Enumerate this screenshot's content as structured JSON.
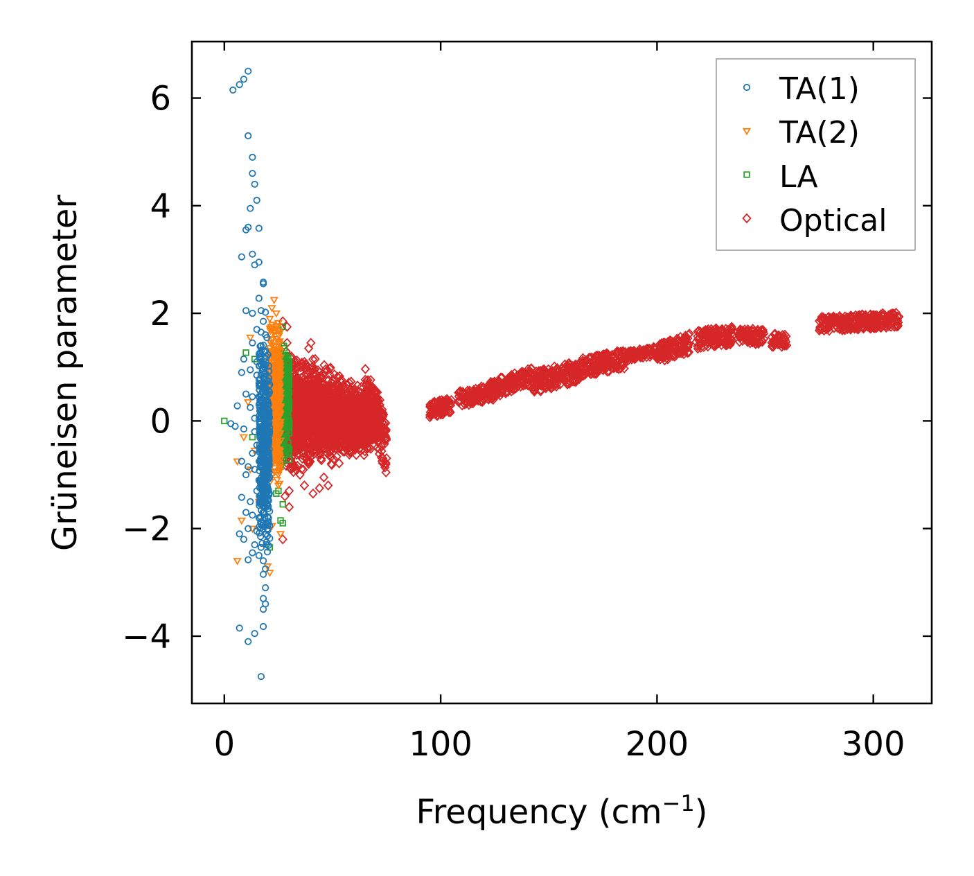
{
  "chart_data": {
    "type": "scatter",
    "title": "",
    "xlabel": "Frequency (cm",
    "xlabel_sup": "−1",
    "xlabel_close": ")",
    "ylabel": "Grüneisen parameter",
    "xlim": [
      -15,
      327
    ],
    "ylim": [
      -5.25,
      7.05
    ],
    "xticks": [
      0,
      100,
      200,
      300
    ],
    "xtick_labels": [
      "0",
      "100",
      "200",
      "300"
    ],
    "yticks": [
      -4,
      -2,
      0,
      2,
      4,
      6
    ],
    "ytick_labels": [
      "−4",
      "−2",
      "0",
      "2",
      "4",
      "6"
    ],
    "grid": false,
    "legend_position": "top-right",
    "series": [
      {
        "name": "TA(1)",
        "marker": "circle",
        "color": "#1f77b4",
        "points": [
          [
            4,
            6.15
          ],
          [
            7,
            6.25
          ],
          [
            9,
            6.35
          ],
          [
            11,
            6.5
          ],
          [
            11,
            5.3
          ],
          [
            13,
            4.9
          ],
          [
            13,
            4.6
          ],
          [
            14,
            4.4
          ],
          [
            15,
            4.1
          ],
          [
            12,
            3.95
          ],
          [
            10,
            3.55
          ],
          [
            11,
            3.6
          ],
          [
            16,
            3.58
          ],
          [
            8,
            3.05
          ],
          [
            13,
            3.1
          ],
          [
            14,
            2.9
          ],
          [
            16,
            2.95
          ],
          [
            18,
            2.58
          ],
          [
            18,
            2.55
          ],
          [
            16,
            2.28
          ],
          [
            10,
            2.05
          ],
          [
            13,
            2.0
          ],
          [
            17,
            2.05
          ],
          [
            19,
            2.02
          ],
          [
            18,
            1.85
          ],
          [
            15,
            1.7
          ],
          [
            17,
            1.65
          ],
          [
            19,
            1.6
          ],
          [
            13,
            1.45
          ],
          [
            17,
            1.4
          ],
          [
            19,
            1.3
          ],
          [
            9,
            1.15
          ],
          [
            15,
            1.1
          ],
          [
            17,
            1.05
          ],
          [
            8,
            0.9
          ],
          [
            12,
            0.95
          ],
          [
            15,
            0.85
          ],
          [
            18,
            0.8
          ],
          [
            16,
            0.7
          ],
          [
            10,
            0.5
          ],
          [
            13,
            0.45
          ],
          [
            17,
            0.4
          ],
          [
            19,
            0.45
          ],
          [
            6,
            0.28
          ],
          [
            12,
            0.25
          ],
          [
            16,
            0.3
          ],
          [
            18,
            0.15
          ],
          [
            14,
            0.05
          ],
          [
            3,
            -0.05
          ],
          [
            5,
            -0.1
          ],
          [
            9,
            -0.15
          ],
          [
            14,
            -0.2
          ],
          [
            17,
            -0.1
          ],
          [
            19,
            -0.25
          ],
          [
            15,
            -0.45
          ],
          [
            18,
            -0.5
          ],
          [
            13,
            -0.6
          ],
          [
            17,
            -0.7
          ],
          [
            8,
            -0.75
          ],
          [
            11,
            -0.85
          ],
          [
            14,
            -0.9
          ],
          [
            18,
            -0.95
          ],
          [
            10,
            -1.0
          ],
          [
            16,
            -1.1
          ],
          [
            19,
            -1.2
          ],
          [
            15,
            -1.3
          ],
          [
            8,
            -1.42
          ],
          [
            12,
            -1.5
          ],
          [
            17,
            -1.55
          ],
          [
            19,
            -1.6
          ],
          [
            10,
            -1.7
          ],
          [
            13,
            -1.75
          ],
          [
            16,
            -1.8
          ],
          [
            18,
            -1.9
          ],
          [
            11,
            -2.0
          ],
          [
            15,
            -2.05
          ],
          [
            19,
            -2.1
          ],
          [
            7,
            -2.1
          ],
          [
            9,
            -2.2
          ],
          [
            14,
            -2.3
          ],
          [
            17,
            -2.35
          ],
          [
            13,
            -2.45
          ],
          [
            16,
            -2.5
          ],
          [
            11,
            -2.58
          ],
          [
            18,
            -2.6
          ],
          [
            19,
            -2.75
          ],
          [
            18,
            -2.85
          ],
          [
            19,
            -3.1
          ],
          [
            18,
            -3.3
          ],
          [
            19,
            -3.4
          ],
          [
            18,
            -3.5
          ],
          [
            7,
            -3.85
          ],
          [
            14,
            -3.95
          ],
          [
            18,
            -3.82
          ],
          [
            11,
            -4.1
          ],
          [
            17,
            -4.75
          ]
        ],
        "cluster": {
          "xmin": 16,
          "xmax": 21,
          "ymin": -2.5,
          "ymax": 1.7,
          "count": 450
        }
      },
      {
        "name": "TA(2)",
        "marker": "triangle-down",
        "color": "#ff7f0e",
        "points": [
          [
            23,
            2.25
          ],
          [
            22,
            2.1
          ],
          [
            24,
            2.0
          ],
          [
            21,
            1.9
          ],
          [
            12,
            1.55
          ],
          [
            22,
            1.7
          ],
          [
            25,
            1.6
          ],
          [
            9,
            -0.3
          ],
          [
            6,
            -0.75
          ],
          [
            12,
            -0.9
          ],
          [
            22,
            -1.0
          ],
          [
            25,
            -1.2
          ],
          [
            16,
            -1.5
          ],
          [
            8,
            -1.85
          ],
          [
            13,
            -2.0
          ],
          [
            22,
            -1.95
          ],
          [
            26,
            -2.1
          ],
          [
            6,
            -2.6
          ],
          [
            20,
            -2.7
          ],
          [
            21,
            -2.82
          ],
          [
            11,
            0.35
          ],
          [
            14,
            -0.55
          ],
          [
            24,
            -0.6
          ],
          [
            23,
            0.4
          ],
          [
            25,
            0.9
          ]
        ],
        "cluster": {
          "xmin": 21,
          "xmax": 26,
          "ymin": -1.2,
          "ymax": 1.9,
          "count": 380
        }
      },
      {
        "name": "LA",
        "marker": "square",
        "color": "#2ca02c",
        "points": [
          [
            0,
            0.0
          ],
          [
            10,
            1.27
          ],
          [
            14,
            1.15
          ],
          [
            13,
            -0.3
          ],
          [
            22,
            1.0
          ],
          [
            24,
            -0.5
          ],
          [
            26,
            -0.85
          ],
          [
            25,
            -1.3
          ],
          [
            24,
            -1.35
          ],
          [
            27,
            -1.55
          ],
          [
            27,
            -1.9
          ],
          [
            26,
            -1.85
          ],
          [
            21,
            -2.35
          ],
          [
            27,
            1.75
          ],
          [
            25,
            1.7
          ]
        ],
        "cluster": {
          "xmin": 25,
          "xmax": 30,
          "ymin": -0.8,
          "ymax": 1.5,
          "count": 320
        }
      },
      {
        "name": "Optical",
        "marker": "diamond",
        "color": "#d62728",
        "points": [
          [
            27,
            1.85
          ],
          [
            29,
            1.75
          ],
          [
            29,
            1.45
          ],
          [
            40,
            1.45
          ],
          [
            39,
            1.35
          ],
          [
            42,
            1.15
          ],
          [
            30,
            -1.3
          ],
          [
            30,
            -1.6
          ],
          [
            28,
            -1.4
          ],
          [
            27,
            -2.2
          ],
          [
            35,
            -1.0
          ],
          [
            37,
            -1.2
          ],
          [
            41,
            -1.35
          ],
          [
            44,
            -1.25
          ],
          [
            48,
            -1.2
          ],
          [
            46,
            -1.05
          ],
          [
            33,
            -0.9
          ],
          [
            39,
            -0.8
          ],
          [
            36,
            -0.7
          ]
        ],
        "clusters": [
          {
            "type": "cone",
            "x0": 28,
            "x1": 72,
            "yc0": 0.15,
            "yc1": 0.0,
            "h0": 1.15,
            "h1": 0.5,
            "count": 2200
          },
          {
            "type": "band",
            "x0": 65,
            "x1": 75,
            "y0": 0.6,
            "y1": -0.5,
            "w": 1.0,
            "count": 150
          },
          {
            "type": "band",
            "x0": 95,
            "x1": 105,
            "y0": 0.2,
            "y1": 0.3,
            "w": 0.28,
            "count": 90
          },
          {
            "type": "band",
            "x0": 108,
            "x1": 125,
            "y0": 0.4,
            "y1": 0.55,
            "w": 0.3,
            "count": 120
          },
          {
            "type": "band",
            "x0": 122,
            "x1": 142,
            "y0": 0.55,
            "y1": 0.85,
            "w": 0.35,
            "count": 140
          },
          {
            "type": "band",
            "x0": 142,
            "x1": 165,
            "y0": 0.7,
            "y1": 0.95,
            "w": 0.4,
            "count": 180
          },
          {
            "type": "band",
            "x0": 165,
            "x1": 185,
            "y0": 1.0,
            "y1": 1.15,
            "w": 0.35,
            "count": 160
          },
          {
            "type": "band",
            "x0": 185,
            "x1": 200,
            "y0": 1.2,
            "y1": 1.3,
            "w": 0.18,
            "count": 80
          },
          {
            "type": "band",
            "x0": 200,
            "x1": 215,
            "y0": 1.25,
            "y1": 1.45,
            "w": 0.35,
            "count": 110
          },
          {
            "type": "band",
            "x0": 218,
            "x1": 235,
            "y0": 1.5,
            "y1": 1.6,
            "w": 0.35,
            "count": 120
          },
          {
            "type": "band",
            "x0": 238,
            "x1": 250,
            "y0": 1.6,
            "y1": 1.55,
            "w": 0.3,
            "count": 80
          },
          {
            "type": "band",
            "x0": 253,
            "x1": 260,
            "y0": 1.5,
            "y1": 1.5,
            "w": 0.25,
            "count": 40
          },
          {
            "type": "band",
            "x0": 275,
            "x1": 312,
            "y0": 1.8,
            "y1": 1.88,
            "w": 0.28,
            "count": 260
          }
        ]
      }
    ]
  }
}
